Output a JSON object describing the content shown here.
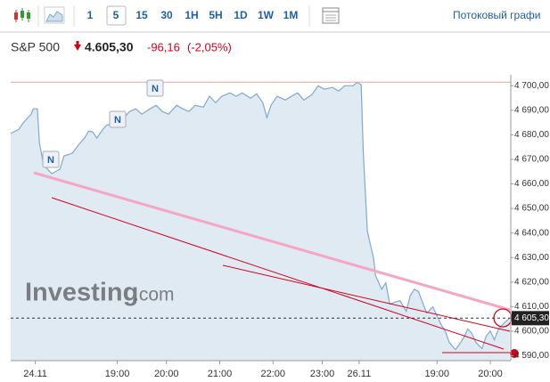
{
  "toolbar": {
    "intervals": [
      "1",
      "5",
      "15",
      "30",
      "1H",
      "5H",
      "1D",
      "1W",
      "1M"
    ],
    "stream_link": "Потоковый графи"
  },
  "header": {
    "price": "4.605,30",
    "change": "-96,16",
    "change_pct": "(-2,05%)"
  },
  "watermark": {
    "brand": "Investing",
    "suffix": ".com"
  },
  "news_marker": "N",
  "chart_data": {
    "type": "line",
    "title": "S&P 500",
    "x": [
      0,
      2,
      3,
      5,
      5.5,
      6.5,
      7,
      8,
      10,
      12,
      13,
      15,
      16.5,
      18,
      19,
      20,
      21,
      22.5,
      23.5,
      25,
      26.5,
      28,
      29,
      30.5,
      32,
      34,
      35.5,
      37,
      38.5,
      40.5,
      42,
      43.5,
      45,
      47,
      48.5,
      50,
      51.5,
      53.5,
      55,
      56.5,
      58.5,
      60,
      61.5,
      62.5,
      63.5,
      65,
      67,
      68.5,
      70,
      71.5,
      73.5,
      75,
      76.5,
      78.5,
      80,
      81.5,
      83.5,
      84.5,
      85.5,
      86,
      87,
      88.5,
      89,
      90.5,
      91.5,
      92.5,
      93.5,
      95,
      96.5,
      97.5,
      98.5,
      99.5,
      100.5,
      101.5,
      103,
      104,
      105,
      106,
      107,
      108.5,
      109.5,
      110.5,
      111.5,
      112.5,
      113.5,
      115,
      116,
      117,
      118,
      119,
      120,
      121.7
    ],
    "series": [
      {
        "name": "S&P 500",
        "color": "#7fa9cf",
        "values": [
          4680.5,
          4682.3,
          4684.8,
          4688.4,
          4690.6,
          4690.6,
          4676.8,
          4667.8,
          4664.2,
          4666,
          4671.4,
          4672.5,
          4675.8,
          4678.7,
          4681.5,
          4681.2,
          4678.7,
          4682.3,
          4684.1,
          4684.1,
          4683.4,
          4687.7,
          4689.5,
          4690.6,
          4688.4,
          4690.6,
          4692,
          4689.5,
          4688.4,
          4692,
          4690.6,
          4689.5,
          4692,
          4691.3,
          4695.7,
          4693.1,
          4695.7,
          4697.1,
          4695.7,
          4697.1,
          4694.9,
          4696.7,
          4693.1,
          4687,
          4692,
          4695.7,
          4694.2,
          4695.7,
          4697.1,
          4694.2,
          4696.4,
          4700,
          4698.6,
          4699.3,
          4697.8,
          4700,
          4700,
          4701.4,
          4700.4,
          4673.2,
          4640.7,
          4629.8,
          4622.6,
          4617.1,
          4619.7,
          4611,
          4611.7,
          4612.4,
          4608.1,
          4614.6,
          4617.1,
          4616.1,
          4611.7,
          4607.4,
          4609.9,
          4606.3,
          4602.7,
          4600.1,
          4595.4,
          4592.5,
          4594.7,
          4597.3,
          4600.9,
          4599.1,
          4595.4,
          4592.9,
          4598,
          4600.1,
          4596.5,
          4600.9,
          4602.7,
          4605.3
        ]
      }
    ],
    "last_price": {
      "value": 4605.3,
      "label": "4 605,30"
    },
    "previous_close": 4701.46,
    "xlim": [
      0,
      122
    ],
    "xticks": [
      {
        "value": 6,
        "label": "24.11"
      },
      {
        "value": 26,
        "label": "19:00"
      },
      {
        "value": 38,
        "label": "20:00"
      },
      {
        "value": 51,
        "label": "21:00"
      },
      {
        "value": 64,
        "label": "22:00"
      },
      {
        "value": 76,
        "label": "23:00"
      },
      {
        "value": 85,
        "label": "26.11"
      },
      {
        "value": 104,
        "label": "19:00"
      },
      {
        "value": 117,
        "label": "20:00"
      }
    ],
    "ylim": [
      4588,
      4703
    ],
    "yticks": [
      {
        "value": 4590,
        "label": "4 590,00"
      },
      {
        "value": 4600,
        "label": "4 600,00"
      },
      {
        "value": 4610,
        "label": "4 610,00"
      },
      {
        "value": 4620,
        "label": "4 620,00"
      },
      {
        "value": 4630,
        "label": "4 630,00"
      },
      {
        "value": 4640,
        "label": "4 640,00"
      },
      {
        "value": 4650,
        "label": "4 650,00"
      },
      {
        "value": 4660,
        "label": "4 660,00"
      },
      {
        "value": 4670,
        "label": "4 670,00"
      },
      {
        "value": 4680,
        "label": "4 680,00"
      },
      {
        "value": 4690,
        "label": "4 690,00"
      },
      {
        "value": 4700,
        "label": "4 700,00"
      }
    ],
    "grid": false
  }
}
